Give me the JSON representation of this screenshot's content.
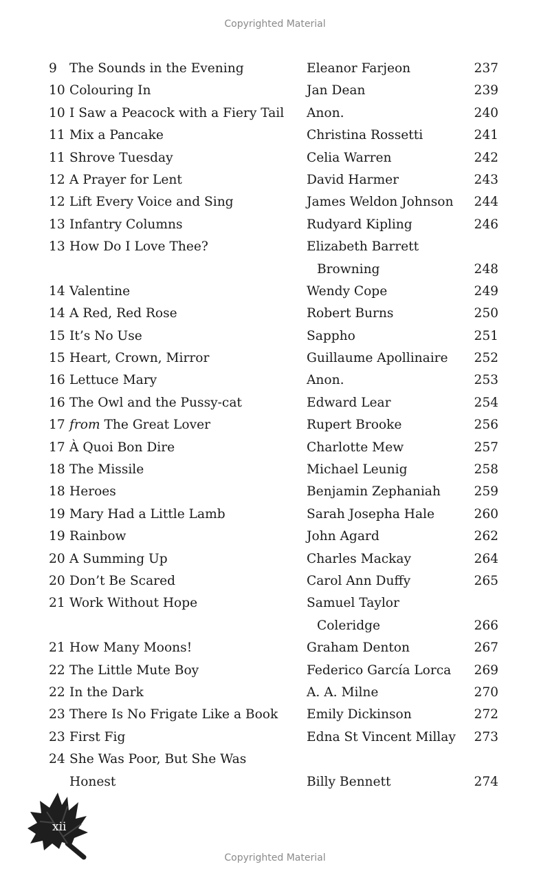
{
  "watermark": "Copyrighted Material",
  "folio": "xii",
  "entries": [
    {
      "num": "9",
      "title": [
        "The Sounds in the Evening"
      ],
      "author": [
        "Eleanor Farjeon"
      ],
      "page": "237"
    },
    {
      "num": "10",
      "title": [
        "Colouring In"
      ],
      "author": [
        "Jan Dean"
      ],
      "page": "239"
    },
    {
      "num": "10",
      "title": [
        "I Saw a Peacock with a Fiery Tail"
      ],
      "author": [
        "Anon."
      ],
      "page": "240"
    },
    {
      "num": "11",
      "title": [
        "Mix a Pancake"
      ],
      "author": [
        "Christina Rossetti"
      ],
      "page": "241"
    },
    {
      "num": "11",
      "title": [
        "Shrove Tuesday"
      ],
      "author": [
        "Celia Warren"
      ],
      "page": "242"
    },
    {
      "num": "12",
      "title": [
        "A Prayer for Lent"
      ],
      "author": [
        "David Harmer"
      ],
      "page": "243"
    },
    {
      "num": "12",
      "title": [
        "Lift Every Voice and Sing"
      ],
      "author": [
        "James Weldon Johnson"
      ],
      "page": "244"
    },
    {
      "num": "13",
      "title": [
        "Infantry Columns"
      ],
      "author": [
        "Rudyard Kipling"
      ],
      "page": "246"
    },
    {
      "num": "13",
      "title": [
        "How Do I Love Thee?"
      ],
      "author": [
        "Elizabeth Barrett",
        "Browning"
      ],
      "page": "248"
    },
    {
      "num": "14",
      "title": [
        "Valentine"
      ],
      "author": [
        "Wendy Cope"
      ],
      "page": "249"
    },
    {
      "num": "14",
      "title": [
        "A Red, Red Rose"
      ],
      "author": [
        "Robert Burns"
      ],
      "page": "250"
    },
    {
      "num": "15",
      "title": [
        "It’s No Use"
      ],
      "author": [
        "Sappho"
      ],
      "page": "251"
    },
    {
      "num": "15",
      "title": [
        "Heart, Crown, Mirror"
      ],
      "author": [
        "Guillaume Apollinaire"
      ],
      "page": "252"
    },
    {
      "num": "16",
      "title": [
        "Lettuce Mary"
      ],
      "author": [
        "Anon."
      ],
      "page": "253"
    },
    {
      "num": "16",
      "title": [
        "The Owl and the Pussy-cat"
      ],
      "author": [
        "Edward Lear"
      ],
      "page": "254"
    },
    {
      "num": "17",
      "prefix": "from",
      "title": [
        "The Great Lover"
      ],
      "author": [
        "Rupert Brooke"
      ],
      "page": "256"
    },
    {
      "num": "17",
      "title": [
        "À Quoi Bon Dire"
      ],
      "author": [
        "Charlotte Mew"
      ],
      "page": "257"
    },
    {
      "num": "18",
      "title": [
        "The Missile"
      ],
      "author": [
        "Michael Leunig"
      ],
      "page": "258"
    },
    {
      "num": "18",
      "title": [
        "Heroes"
      ],
      "author": [
        "Benjamin Zephaniah"
      ],
      "page": "259"
    },
    {
      "num": "19",
      "title": [
        "Mary Had a Little Lamb"
      ],
      "author": [
        "Sarah Josepha Hale"
      ],
      "page": "260"
    },
    {
      "num": "19",
      "title": [
        "Rainbow"
      ],
      "author": [
        "John Agard"
      ],
      "page": "262"
    },
    {
      "num": "20",
      "title": [
        "A Summing Up"
      ],
      "author": [
        "Charles Mackay"
      ],
      "page": "264"
    },
    {
      "num": "20",
      "title": [
        "Don’t Be Scared"
      ],
      "author": [
        "Carol Ann Duffy"
      ],
      "page": "265"
    },
    {
      "num": "21",
      "title": [
        "Work Without Hope"
      ],
      "author": [
        "Samuel Taylor",
        "Coleridge"
      ],
      "page": "266"
    },
    {
      "num": "21",
      "title": [
        "How Many Moons!"
      ],
      "author": [
        "Graham Denton"
      ],
      "page": "267"
    },
    {
      "num": "22",
      "title": [
        "The Little Mute Boy"
      ],
      "author": [
        "Federico García Lorca"
      ],
      "page": "269"
    },
    {
      "num": "22",
      "title": [
        "In the Dark"
      ],
      "author": [
        "A. A. Milne"
      ],
      "page": "270"
    },
    {
      "num": "23",
      "title": [
        "There Is No Frigate Like a Book"
      ],
      "author": [
        "Emily Dickinson"
      ],
      "page": "272"
    },
    {
      "num": "23",
      "title": [
        "First Fig"
      ],
      "author": [
        "Edna St Vincent Millay"
      ],
      "page": "273"
    },
    {
      "num": "24",
      "title": [
        "She Was Poor, But She Was",
        "Honest"
      ],
      "author_on_last_line": true,
      "author": [
        "Billy Bennett"
      ],
      "page": "274"
    }
  ]
}
